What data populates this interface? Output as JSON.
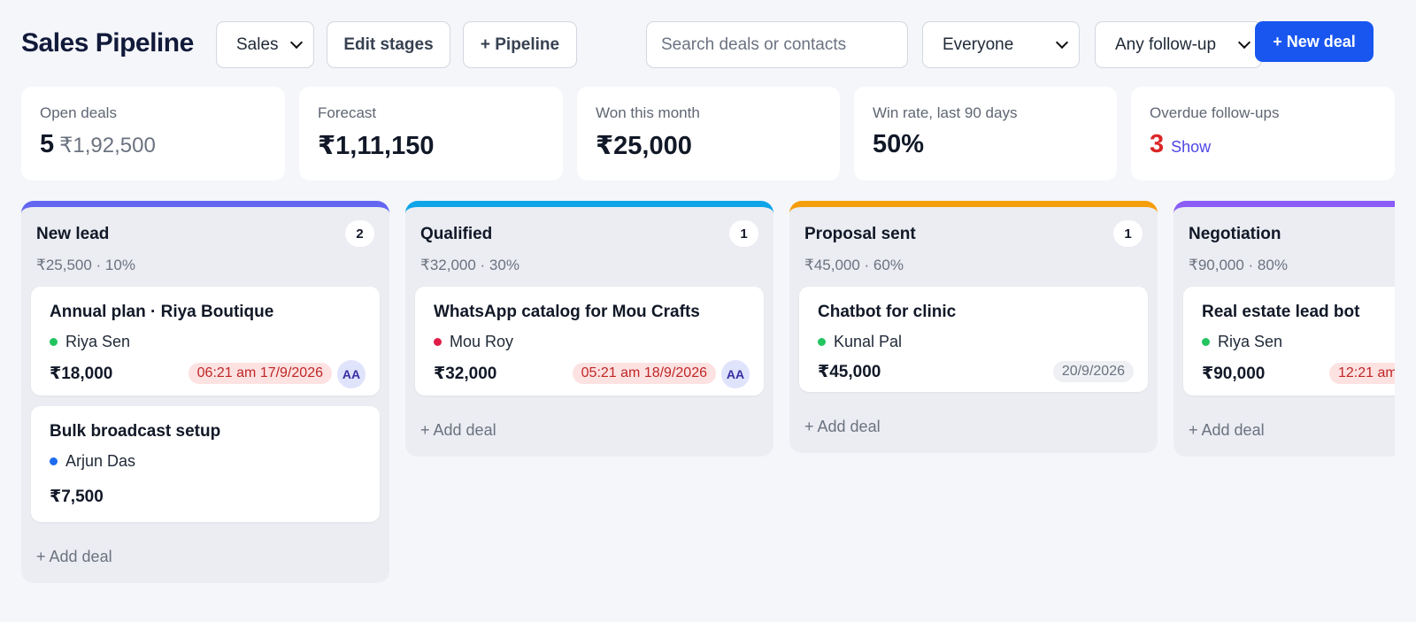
{
  "header": {
    "title": "Sales Pipeline",
    "pipeline_select": "Sales",
    "edit_stages": "Edit stages",
    "add_pipeline": "+ Pipeline",
    "search_placeholder": "Search deals or contacts",
    "owner_select": "Everyone",
    "followup_select": "Any follow-up",
    "new_deal": "+ New deal"
  },
  "stats": {
    "open_deals": {
      "label": "Open deals",
      "count": "5",
      "amount": "₹1,92,500"
    },
    "forecast": {
      "label": "Forecast",
      "value": "₹1,11,150"
    },
    "won": {
      "label": "Won this month",
      "value": "₹25,000"
    },
    "win_rate": {
      "label": "Win rate, last 90 days",
      "value": "50%"
    },
    "overdue": {
      "label": "Overdue follow-ups",
      "count": "3",
      "link": "Show"
    }
  },
  "add_deal_label": "+ Add deal",
  "columns": [
    {
      "title": "New lead",
      "count": "2",
      "summary": "₹25,500 · 10%",
      "accent": "#6366f1",
      "cards": [
        {
          "title": "Annual plan · Riya Boutique",
          "contact": "Riya Sen",
          "dot": "#22c55e",
          "amount": "₹18,000",
          "due": "06:21 am 17/9/2026",
          "avatar": "AA"
        },
        {
          "title": "Bulk broadcast setup",
          "contact": "Arjun Das",
          "dot": "#1d6cf0",
          "amount": "₹7,500"
        }
      ]
    },
    {
      "title": "Qualified",
      "count": "1",
      "summary": "₹32,000 · 30%",
      "accent": "#0ea5e9",
      "cards": [
        {
          "title": "WhatsApp catalog for Mou Crafts",
          "contact": "Mou Roy",
          "dot": "#e11d48",
          "amount": "₹32,000",
          "due": "05:21 am 18/9/2026",
          "avatar": "AA"
        }
      ]
    },
    {
      "title": "Proposal sent",
      "count": "1",
      "summary": "₹45,000 · 60%",
      "accent": "#f59e0b",
      "cards": [
        {
          "title": "Chatbot for clinic",
          "contact": "Kunal Pal",
          "dot": "#22c55e",
          "amount": "₹45,000",
          "date": "20/9/2026"
        }
      ]
    },
    {
      "title": "Negotiation",
      "summary": "₹90,000 · 80%",
      "accent": "#8b5cf6",
      "cards": [
        {
          "title": "Real estate lead bot",
          "contact": "Riya Sen",
          "dot": "#22c55e",
          "amount": "₹90,000",
          "due": "12:21 am"
        }
      ]
    }
  ]
}
